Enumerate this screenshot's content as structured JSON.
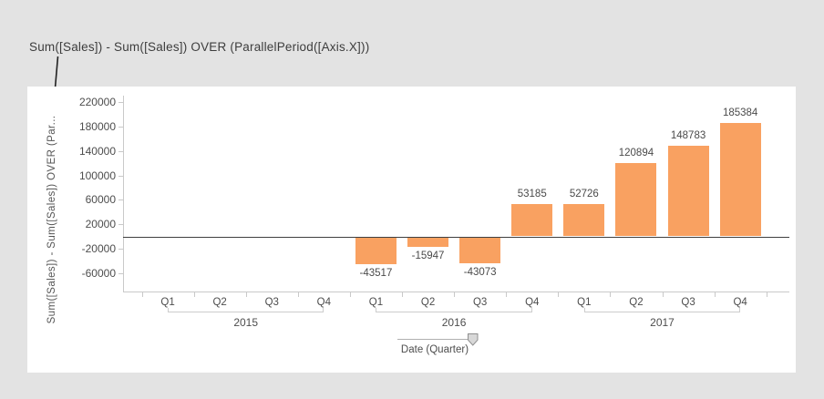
{
  "annotation": {
    "title": "Sum([Sales]) - Sum([Sales]) OVER (ParallelPeriod([Axis.X]))"
  },
  "colors": {
    "page_background": "#e3e3e3",
    "panel_background": "#ffffff",
    "bar": "#f9a161",
    "zero_line": "#3f3f3f",
    "axis_line": "#c9c9c9",
    "text": "#4d4d4d"
  },
  "y_axis": {
    "label": "Sum([Sales]) - Sum([Sales]) OVER (Par..."
  },
  "x_axis": {
    "slider_label": "Date (Quarter)"
  },
  "chart_data": {
    "type": "bar",
    "title": "Sum([Sales]) - Sum([Sales]) OVER (ParallelPeriod([Axis.X]))",
    "ylabel": "Sum([Sales]) - Sum([Sales]) OVER (Par...",
    "xlabel": "Date (Quarter)",
    "grid": false,
    "legend_position": "none",
    "bar_color": "#f9a161",
    "ylim": [
      -90000,
      232000
    ],
    "ytick_step": 40000,
    "yticks": [
      220000,
      180000,
      140000,
      100000,
      60000,
      20000,
      -20000,
      -60000
    ],
    "categories": [
      "2015 Q1",
      "2015 Q2",
      "2015 Q3",
      "2015 Q4",
      "2016 Q1",
      "2016 Q2",
      "2016 Q3",
      "2016 Q4",
      "2017 Q1",
      "2017 Q2",
      "2017 Q3",
      "2017 Q4"
    ],
    "values": [
      null,
      null,
      null,
      null,
      -43517,
      -15947,
      -43073,
      53185,
      52726,
      120894,
      148783,
      185384
    ],
    "years": [
      {
        "label": "2015",
        "quarters": [
          "Q1",
          "Q2",
          "Q3",
          "Q4"
        ],
        "values": [
          null,
          null,
          null,
          null
        ]
      },
      {
        "label": "2016",
        "quarters": [
          "Q1",
          "Q2",
          "Q3",
          "Q4"
        ],
        "values": [
          -43517,
          -15947,
          -43073,
          53185
        ]
      },
      {
        "label": "2017",
        "quarters": [
          "Q1",
          "Q2",
          "Q3",
          "Q4"
        ],
        "values": [
          52726,
          120894,
          148783,
          185384
        ]
      }
    ]
  }
}
